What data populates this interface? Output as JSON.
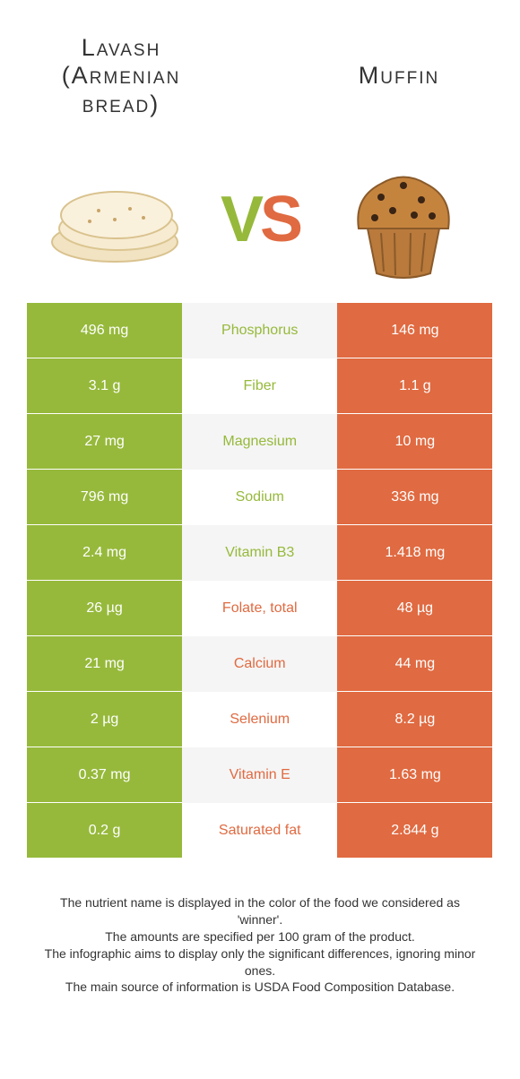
{
  "colors": {
    "left_bg": "#96b93b",
    "right_bg": "#e06a41",
    "left_text": "#96b93b",
    "right_text": "#e06a41",
    "mid_bg": "#f5f5f5",
    "body_text": "#333333"
  },
  "header": {
    "left_title": "Lavash (Armenian bread)",
    "right_title": "Muffin",
    "vs_v": "V",
    "vs_s": "S"
  },
  "rows": [
    {
      "left": "496 mg",
      "label": "Phosphorus",
      "right": "146 mg",
      "winner": "left"
    },
    {
      "left": "3.1 g",
      "label": "Fiber",
      "right": "1.1 g",
      "winner": "left"
    },
    {
      "left": "27 mg",
      "label": "Magnesium",
      "right": "10 mg",
      "winner": "left"
    },
    {
      "left": "796 mg",
      "label": "Sodium",
      "right": "336 mg",
      "winner": "left"
    },
    {
      "left": "2.4 mg",
      "label": "Vitamin B3",
      "right": "1.418 mg",
      "winner": "left"
    },
    {
      "left": "26 µg",
      "label": "Folate, total",
      "right": "48 µg",
      "winner": "right"
    },
    {
      "left": "21 mg",
      "label": "Calcium",
      "right": "44 mg",
      "winner": "right"
    },
    {
      "left": "2 µg",
      "label": "Selenium",
      "right": "8.2 µg",
      "winner": "right"
    },
    {
      "left": "0.37 mg",
      "label": "Vitamin E",
      "right": "1.63 mg",
      "winner": "right"
    },
    {
      "left": "0.2 g",
      "label": "Saturated fat",
      "right": "2.844 g",
      "winner": "right"
    }
  ],
  "footer": {
    "line1": "The nutrient name is displayed in the color of the food we considered as 'winner'.",
    "line2": "The amounts are specified per 100 gram of the product.",
    "line3": "The infographic aims to display only the significant differences, ignoring minor ones.",
    "line4": "The main source of information is USDA Food Composition Database."
  }
}
